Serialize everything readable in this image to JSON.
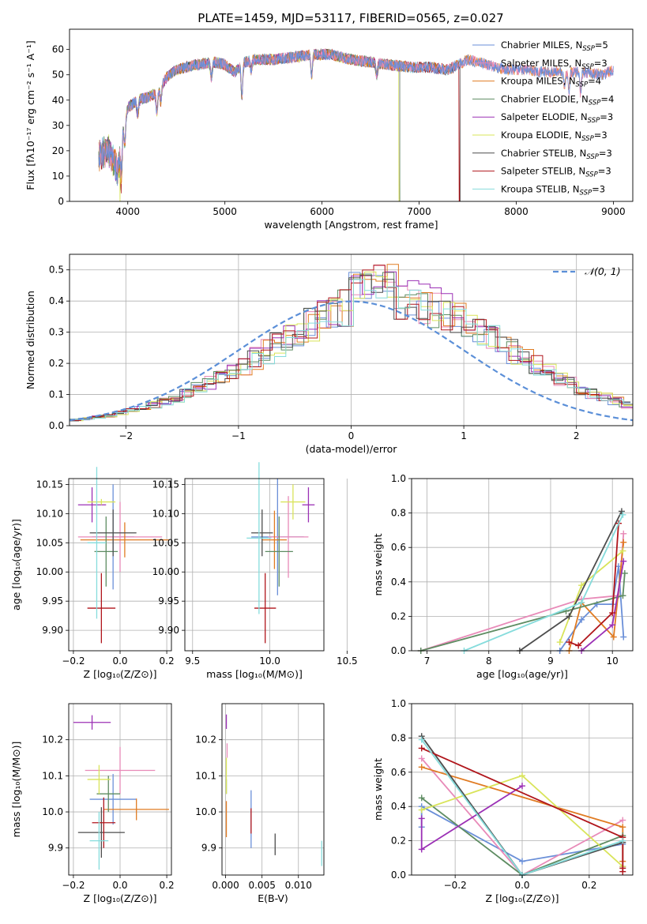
{
  "figure": {
    "title": "PLATE=1459, MJD=53117, FIBERID=0565, z=0.027"
  },
  "models": [
    {
      "name": "Chabrier MILES",
      "nssp": "5",
      "color": "#6a8fd8"
    },
    {
      "name": "Salpeter MILES",
      "nssp": "3",
      "color": "#e88ab8"
    },
    {
      "name": "Kroupa MILES",
      "nssp": "4",
      "color": "#e07b22"
    },
    {
      "name": "Chabrier ELODIE",
      "nssp": "4",
      "color": "#5e8c62"
    },
    {
      "name": "Salpeter ELODIE",
      "nssp": "3",
      "color": "#9b30b5"
    },
    {
      "name": "Kroupa ELODIE",
      "nssp": "3",
      "color": "#d9e45a"
    },
    {
      "name": "Chabrier STELIB",
      "nssp": "3",
      "color": "#4d4d4d"
    },
    {
      "name": "Salpeter STELIB",
      "nssp": "3",
      "color": "#b0151b"
    },
    {
      "name": "Kroupa STELIB",
      "nssp": "3",
      "color": "#86dcdc"
    }
  ],
  "chart_data": [
    {
      "type": "line",
      "title": "PLATE=1459, MJD=53117, FIBERID=0565, z=0.027",
      "xlabel": "wavelength [Angstrom, rest frame]",
      "ylabel": "Flux [fλ10⁻¹⁷ erg cm⁻² s⁻¹ A⁻¹]",
      "xlim": [
        3400,
        9200
      ],
      "ylim": [
        0,
        68
      ],
      "xticks": [
        4000,
        5000,
        6000,
        7000,
        8000,
        9000
      ],
      "yticks": [
        0,
        10,
        20,
        30,
        40,
        50,
        60
      ],
      "grid": false,
      "legend": "top-right",
      "continuum": {
        "x": [
          3700,
          3800,
          3900,
          3950,
          4000,
          4100,
          4200,
          4300,
          4400,
          4500,
          4700,
          4900,
          5000,
          5100,
          5200,
          5300,
          5500,
          5700,
          5900,
          6100,
          6300,
          6500,
          6700,
          6900,
          7100,
          7300,
          7500,
          7700,
          7900,
          8100,
          8300,
          8500,
          8700,
          8900,
          9000
        ],
        "y": [
          18,
          20,
          12,
          30,
          37,
          40,
          41,
          43,
          49,
          52,
          54,
          55,
          54,
          51,
          55,
          56,
          56,
          57,
          58,
          58,
          56,
          55,
          54,
          53,
          53,
          52,
          56,
          54,
          52,
          52,
          51,
          51,
          51,
          50,
          52
        ]
      },
      "line_dips": [
        {
          "x": 3934,
          "depth": 14
        },
        {
          "x": 3969,
          "depth": 10
        },
        {
          "x": 4102,
          "depth": 6
        },
        {
          "x": 4300,
          "depth": 8
        },
        {
          "x": 4340,
          "depth": 6
        },
        {
          "x": 4861,
          "depth": 6
        },
        {
          "x": 5175,
          "depth": 12
        },
        {
          "x": 5270,
          "depth": 4
        },
        {
          "x": 5893,
          "depth": 8
        },
        {
          "x": 6563,
          "depth": 5
        },
        {
          "x": 8498,
          "depth": 6
        },
        {
          "x": 8542,
          "depth": 8
        },
        {
          "x": 8662,
          "depth": 8
        }
      ],
      "dropouts": [
        {
          "series": "Kroupa ELODIE",
          "x": 3920
        },
        {
          "series": "Kroupa ELODIE",
          "x": 6795
        },
        {
          "series": "Salpeter STELIB",
          "x": 7415
        }
      ],
      "spectrum_end": {
        "ELODIE": 6800,
        "STELIB": 7420
      }
    },
    {
      "type": "line",
      "xlabel": "(data-model)/error",
      "ylabel": "Normed distribution",
      "xlim": [
        -2.5,
        2.5
      ],
      "ylim": [
        0,
        0.55
      ],
      "xticks": [
        -2,
        -1,
        0,
        1,
        2
      ],
      "yticks": [
        0.0,
        0.1,
        0.2,
        0.3,
        0.4,
        0.5
      ],
      "grid": true,
      "legend": "top-right",
      "reference_label": "𝒩(0, 1)",
      "bin_width": 0.1,
      "bin_start": -2.5,
      "histogram_base": [
        0.018,
        0.022,
        0.027,
        0.032,
        0.04,
        0.048,
        0.057,
        0.067,
        0.078,
        0.09,
        0.104,
        0.12,
        0.137,
        0.155,
        0.174,
        0.195,
        0.216,
        0.239,
        0.261,
        0.284,
        0.306,
        0.327,
        0.347,
        0.365,
        0.38,
        0.393,
        0.402,
        0.408,
        0.41,
        0.408,
        0.402,
        0.393,
        0.38,
        0.365,
        0.347,
        0.327,
        0.306,
        0.284,
        0.261,
        0.239,
        0.216,
        0.195,
        0.174,
        0.155,
        0.137,
        0.12,
        0.104,
        0.09,
        0.078,
        0.067
      ],
      "histogram_peak": 0.52
    },
    {
      "type": "scatter",
      "xlabel": "Z [log₁₀(Z/Z⊙)]",
      "ylabel": "age  [log₁₀(age/yr)]",
      "xlim": [
        -0.22,
        0.22
      ],
      "ylim": [
        9.865,
        10.16
      ],
      "xticks": [
        -0.2,
        0.0,
        0.2
      ],
      "yticks": [
        9.9,
        9.95,
        10.0,
        10.05,
        10.1,
        10.15
      ],
      "grid": true,
      "points": [
        {
          "x": -0.03,
          "y": 10.06,
          "xerr": 0.09,
          "yerr": 0.09
        },
        {
          "x": 0.0,
          "y": 10.06,
          "xerr": 0.18,
          "yerr": 0.06
        },
        {
          "x": 0.02,
          "y": 10.055,
          "xerr": 0.19,
          "yerr": 0.03
        },
        {
          "x": -0.06,
          "y": 10.035,
          "xerr": 0.05,
          "yerr": 0.06
        },
        {
          "x": -0.12,
          "y": 10.115,
          "xerr": 0.06,
          "yerr": 0.03
        },
        {
          "x": -0.08,
          "y": 10.12,
          "xerr": 0.06,
          "yerr": 0.005
        },
        {
          "x": -0.03,
          "y": 10.067,
          "xerr": 0.1,
          "yerr": 0.04
        },
        {
          "x": -0.08,
          "y": 9.938,
          "xerr": 0.06,
          "yerr": 0.06
        },
        {
          "x": -0.1,
          "y": 10.05,
          "xerr": 0.04,
          "yerr": 0.13
        }
      ]
    },
    {
      "type": "scatter",
      "xlabel": "mass [log₁₀(M/M⊙)]",
      "xlim": [
        9.45,
        10.35
      ],
      "ylim": [
        9.865,
        10.16
      ],
      "xticks": [
        9.5,
        10.0,
        10.5
      ],
      "yticks": [
        9.9,
        9.95,
        10.0,
        10.05,
        10.1,
        10.15
      ],
      "grid": true,
      "points": [
        {
          "x": 10.05,
          "y": 10.06,
          "xerr": 0.17,
          "yerr": 0.1
        },
        {
          "x": 10.12,
          "y": 10.06,
          "xerr": 0.13,
          "yerr": 0.07
        },
        {
          "x": 10.03,
          "y": 10.055,
          "xerr": 0.08,
          "yerr": 0.05
        },
        {
          "x": 10.06,
          "y": 10.035,
          "xerr": 0.09,
          "yerr": 0.06
        },
        {
          "x": 10.25,
          "y": 10.115,
          "xerr": 0.04,
          "yerr": 0.03
        },
        {
          "x": 10.15,
          "y": 10.12,
          "xerr": 0.08,
          "yerr": 0.03
        },
        {
          "x": 9.95,
          "y": 10.067,
          "xerr": 0.07,
          "yerr": 0.04
        },
        {
          "x": 9.97,
          "y": 9.938,
          "xerr": 0.07,
          "yerr": 0.06
        },
        {
          "x": 9.93,
          "y": 10.058,
          "xerr": 0.08,
          "yerr": 0.13
        }
      ]
    },
    {
      "type": "line",
      "xlabel": "age  [log₁₀(age/yr)]",
      "ylabel": "mass weight",
      "xlim": [
        6.75,
        10.33
      ],
      "ylim": [
        0,
        1
      ],
      "xticks": [
        7,
        8,
        9,
        10
      ],
      "yticks": [
        0.0,
        0.2,
        0.4,
        0.6,
        0.8,
        1.0
      ],
      "grid": true,
      "series": [
        {
          "name": "Chabrier MILES",
          "x": [
            9.15,
            9.5,
            9.75,
            10.0,
            10.1,
            10.18
          ],
          "y": [
            0.0,
            0.18,
            0.27,
            0.27,
            0.49,
            0.08
          ]
        },
        {
          "name": "Salpeter MILES",
          "x": [
            6.9,
            9.5,
            10.1,
            10.18
          ],
          "y": [
            0.0,
            0.3,
            0.32,
            0.68
          ]
        },
        {
          "name": "Kroupa MILES",
          "x": [
            9.3,
            9.5,
            10.02,
            10.18
          ],
          "y": [
            0.0,
            0.28,
            0.08,
            0.63
          ]
        },
        {
          "name": "Chabrier ELODIE",
          "x": [
            6.9,
            9.25,
            10.17,
            10.2
          ],
          "y": [
            0.0,
            0.23,
            0.32,
            0.45
          ]
        },
        {
          "name": "Salpeter ELODIE",
          "x": [
            9.5,
            10.0,
            10.18
          ],
          "y": [
            0.0,
            0.15,
            0.52
          ]
        },
        {
          "name": "Kroupa ELODIE",
          "x": [
            9.15,
            9.5,
            10.17
          ],
          "y": [
            0.05,
            0.38,
            0.58
          ]
        },
        {
          "name": "Chabrier STELIB",
          "x": [
            8.5,
            9.3,
            10.15
          ],
          "y": [
            0.0,
            0.2,
            0.81
          ]
        },
        {
          "name": "Salpeter STELIB",
          "x": [
            9.3,
            9.45,
            10.0,
            10.1
          ],
          "y": [
            0.05,
            0.03,
            0.22,
            0.74
          ]
        },
        {
          "name": "Kroupa STELIB",
          "x": [
            7.6,
            9.5,
            10.17
          ],
          "y": [
            0.0,
            0.28,
            0.79
          ]
        }
      ]
    },
    {
      "type": "scatter",
      "xlabel": "Z [log₁₀(Z/Z⊙)]",
      "ylabel": "mass [log₁₀(M/M⊙)]",
      "xlim": [
        -0.22,
        0.22
      ],
      "ylim": [
        9.825,
        10.3
      ],
      "xticks": [
        -0.2,
        0.0,
        0.2
      ],
      "yticks": [
        9.9,
        10.0,
        10.1,
        10.2
      ],
      "grid": true,
      "points": [
        {
          "x": -0.03,
          "y": 10.035,
          "xerr": 0.1,
          "yerr": 0.07
        },
        {
          "x": 0.0,
          "y": 10.115,
          "xerr": 0.15,
          "yerr": 0.065
        },
        {
          "x": 0.07,
          "y": 10.007,
          "xerr": 0.14,
          "yerr": 0.03
        },
        {
          "x": -0.05,
          "y": 10.05,
          "xerr": 0.05,
          "yerr": 0.05
        },
        {
          "x": -0.12,
          "y": 10.248,
          "xerr": 0.08,
          "yerr": 0.02
        },
        {
          "x": -0.09,
          "y": 10.09,
          "xerr": 0.05,
          "yerr": 0.04
        },
        {
          "x": -0.08,
          "y": 9.943,
          "xerr": 0.1,
          "yerr": 0.07
        },
        {
          "x": -0.07,
          "y": 9.97,
          "xerr": 0.05,
          "yerr": 0.07
        },
        {
          "x": -0.09,
          "y": 9.92,
          "xerr": 0.04,
          "yerr": 0.08
        }
      ]
    },
    {
      "type": "scatter",
      "xlabel": "E(B-V)",
      "xlim": [
        -0.0005,
        0.0135
      ],
      "ylim": [
        9.825,
        10.3
      ],
      "xticks": [
        0.0,
        0.005,
        0.01
      ],
      "yticks": [
        9.9,
        10.0,
        10.1,
        10.2
      ],
      "grid": true,
      "points": [
        {
          "x": 0.0035,
          "y": 9.98,
          "xerr": 0,
          "yerr": 0.08
        },
        {
          "x": 0.0002,
          "y": 10.17,
          "xerr": 0,
          "yerr": 0.02
        },
        {
          "x": 0.0001,
          "y": 9.98,
          "xerr": 0,
          "yerr": 0.05
        },
        {
          "x": 0.0001,
          "y": 10.07,
          "xerr": 0,
          "yerr": 0.02
        },
        {
          "x": 0.0001,
          "y": 10.25,
          "xerr": 0,
          "yerr": 0.02
        },
        {
          "x": 0.0001,
          "y": 10.1,
          "xerr": 0,
          "yerr": 0.05
        },
        {
          "x": 0.0068,
          "y": 9.91,
          "xerr": 0,
          "yerr": 0.03
        },
        {
          "x": 0.0035,
          "y": 9.975,
          "xerr": 0,
          "yerr": 0.035
        },
        {
          "x": 0.0132,
          "y": 9.885,
          "xerr": 0,
          "yerr": 0.035
        }
      ]
    },
    {
      "type": "line",
      "xlabel": "Z [log₁₀(Z/Z⊙)]",
      "ylabel": "mass weight",
      "xlim": [
        -0.33,
        0.33
      ],
      "ylim": [
        0,
        1
      ],
      "xticks": [
        -0.2,
        0.0,
        0.2
      ],
      "yticks": [
        0.0,
        0.2,
        0.4,
        0.6,
        0.8,
        1.0
      ],
      "grid": true,
      "series": [
        {
          "name": "Chabrier MILES",
          "x": [
            -0.3,
            -0.3,
            0.0,
            0.3,
            0.3
          ],
          "y": [
            0.28,
            0.4,
            0.08,
            0.18,
            0.05
          ]
        },
        {
          "name": "Salpeter MILES",
          "x": [
            -0.3,
            0.0,
            0.3
          ],
          "y": [
            0.68,
            0.0,
            0.32
          ]
        },
        {
          "name": "Kroupa MILES",
          "x": [
            -0.3,
            0.3,
            0.3
          ],
          "y": [
            0.63,
            0.28,
            0.08
          ]
        },
        {
          "name": "Chabrier ELODIE",
          "x": [
            -0.3,
            0.0,
            0.3
          ],
          "y": [
            0.45,
            0.0,
            0.23
          ]
        },
        {
          "name": "Salpeter ELODIE",
          "x": [
            -0.3,
            -0.3,
            0.0
          ],
          "y": [
            0.33,
            0.15,
            0.52
          ]
        },
        {
          "name": "Kroupa ELODIE",
          "x": [
            -0.3,
            0.0,
            0.3
          ],
          "y": [
            0.38,
            0.58,
            0.05
          ]
        },
        {
          "name": "Chabrier STELIB",
          "x": [
            -0.3,
            0.0,
            0.3
          ],
          "y": [
            0.81,
            0.0,
            0.19
          ]
        },
        {
          "name": "Salpeter STELIB",
          "x": [
            -0.3,
            0.3,
            0.3,
            0.3
          ],
          "y": [
            0.74,
            0.22,
            0.04,
            0.02
          ]
        },
        {
          "name": "Kroupa STELIB",
          "x": [
            -0.3,
            0.0,
            0.3
          ],
          "y": [
            0.79,
            0.0,
            0.2
          ]
        }
      ]
    }
  ]
}
